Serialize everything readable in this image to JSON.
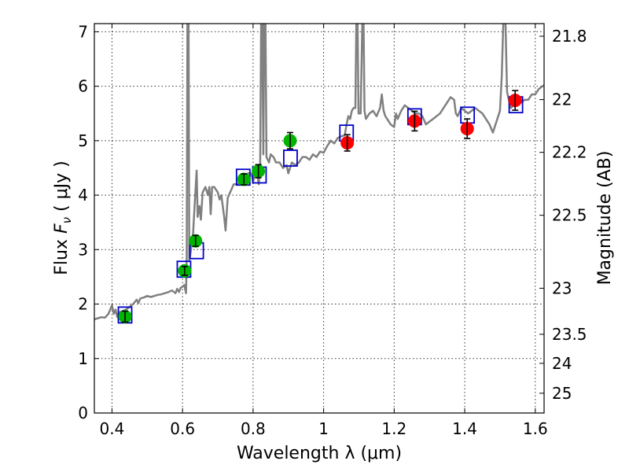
{
  "chart_data": {
    "type": "scatter",
    "xlabel": "Wavelength  λ (μm)",
    "ylabel_prefix": "Flux  ",
    "ylabel_symbol": "F",
    "ylabel_sub": "ν",
    "ylabel_unit": "  ( μJy )",
    "y2label": "Magnitude (AB)",
    "xlim": [
      0.35,
      1.625
    ],
    "ylim": [
      0,
      7.15
    ],
    "grid": true,
    "x_ticks": [
      {
        "value": 0.4,
        "label": "0.4"
      },
      {
        "value": 0.6,
        "label": "0.6"
      },
      {
        "value": 0.8,
        "label": "0.8"
      },
      {
        "value": 1.0,
        "label": "1"
      },
      {
        "value": 1.2,
        "label": "1.2"
      },
      {
        "value": 1.4,
        "label": "1.4"
      },
      {
        "value": 1.6,
        "label": "1.6"
      }
    ],
    "y_ticks": [
      {
        "value": 0,
        "label": "0"
      },
      {
        "value": 1,
        "label": "1"
      },
      {
        "value": 2,
        "label": "2"
      },
      {
        "value": 3,
        "label": "3"
      },
      {
        "value": 4,
        "label": "4"
      },
      {
        "value": 5,
        "label": "5"
      },
      {
        "value": 6,
        "label": "6"
      },
      {
        "value": 7,
        "label": "7"
      }
    ],
    "mag_ticks": [
      {
        "mag": 21.8,
        "label": "21.8"
      },
      {
        "mag": 22.0,
        "label": "22"
      },
      {
        "mag": 22.2,
        "label": "22.2"
      },
      {
        "mag": 22.5,
        "label": "22.5"
      },
      {
        "mag": 23.0,
        "label": "23"
      },
      {
        "mag": 23.5,
        "label": "23.5"
      },
      {
        "mag": 24.0,
        "label": "24"
      },
      {
        "mag": 25.0,
        "label": "25"
      }
    ],
    "colors": {
      "model": "#808080",
      "optical": "#00b400",
      "infrared": "#ff0000",
      "synthetic": "#0000cc",
      "errorbar": "#000000"
    },
    "model_spectrum": [
      [
        0.35,
        1.72
      ],
      [
        0.36,
        1.74
      ],
      [
        0.37,
        1.76
      ],
      [
        0.38,
        1.75
      ],
      [
        0.39,
        1.82
      ],
      [
        0.395,
        1.9
      ],
      [
        0.4,
        1.98
      ],
      [
        0.405,
        1.82
      ],
      [
        0.41,
        1.9
      ],
      [
        0.415,
        1.76
      ],
      [
        0.42,
        1.85
      ],
      [
        0.43,
        1.87
      ],
      [
        0.44,
        1.9
      ],
      [
        0.45,
        1.95
      ],
      [
        0.46,
        2.0
      ],
      [
        0.47,
        2.08
      ],
      [
        0.475,
        2.02
      ],
      [
        0.48,
        2.1
      ],
      [
        0.49,
        2.12
      ],
      [
        0.5,
        2.15
      ],
      [
        0.51,
        2.13
      ],
      [
        0.52,
        2.15
      ],
      [
        0.53,
        2.17
      ],
      [
        0.54,
        2.18
      ],
      [
        0.55,
        2.2
      ],
      [
        0.56,
        2.22
      ],
      [
        0.57,
        2.25
      ],
      [
        0.58,
        2.2
      ],
      [
        0.585,
        2.28
      ],
      [
        0.59,
        2.22
      ],
      [
        0.595,
        2.3
      ],
      [
        0.6,
        2.32
      ],
      [
        0.605,
        2.35
      ],
      [
        0.61,
        2.2
      ],
      [
        0.612,
        2.9
      ],
      [
        0.614,
        7.3
      ],
      [
        0.617,
        7.3
      ],
      [
        0.619,
        2.8
      ],
      [
        0.622,
        2.9
      ],
      [
        0.63,
        3.3
      ],
      [
        0.635,
        3.9
      ],
      [
        0.64,
        4.45
      ],
      [
        0.643,
        3.6
      ],
      [
        0.648,
        3.8
      ],
      [
        0.652,
        3.55
      ],
      [
        0.657,
        4.05
      ],
      [
        0.665,
        4.15
      ],
      [
        0.672,
        4.0
      ],
      [
        0.676,
        4.15
      ],
      [
        0.68,
        3.65
      ],
      [
        0.684,
        4.15
      ],
      [
        0.69,
        4.15
      ],
      [
        0.7,
        4.05
      ],
      [
        0.705,
        3.92
      ],
      [
        0.71,
        4.0
      ],
      [
        0.718,
        3.6
      ],
      [
        0.722,
        3.35
      ],
      [
        0.728,
        3.95
      ],
      [
        0.735,
        4.05
      ],
      [
        0.745,
        4.2
      ],
      [
        0.755,
        4.2
      ],
      [
        0.765,
        4.25
      ],
      [
        0.775,
        4.3
      ],
      [
        0.785,
        4.4
      ],
      [
        0.795,
        4.4
      ],
      [
        0.8,
        4.25
      ],
      [
        0.805,
        4.35
      ],
      [
        0.81,
        4.45
      ],
      [
        0.816,
        4.2
      ],
      [
        0.82,
        4.55
      ],
      [
        0.823,
        7.3
      ],
      [
        0.826,
        7.3
      ],
      [
        0.829,
        4.75
      ],
      [
        0.832,
        7.3
      ],
      [
        0.835,
        7.3
      ],
      [
        0.838,
        4.7
      ],
      [
        0.845,
        4.6
      ],
      [
        0.85,
        4.75
      ],
      [
        0.858,
        4.7
      ],
      [
        0.865,
        4.6
      ],
      [
        0.875,
        4.6
      ],
      [
        0.885,
        4.5
      ],
      [
        0.895,
        4.55
      ],
      [
        0.9,
        4.4
      ],
      [
        0.91,
        4.6
      ],
      [
        0.92,
        4.55
      ],
      [
        0.93,
        4.6
      ],
      [
        0.94,
        4.7
      ],
      [
        0.95,
        4.7
      ],
      [
        0.96,
        4.65
      ],
      [
        0.97,
        4.75
      ],
      [
        0.98,
        4.7
      ],
      [
        0.99,
        4.8
      ],
      [
        1.0,
        4.78
      ],
      [
        1.01,
        4.9
      ],
      [
        1.02,
        5.0
      ],
      [
        1.03,
        4.95
      ],
      [
        1.04,
        5.05
      ],
      [
        1.05,
        5.08
      ],
      [
        1.06,
        5.1
      ],
      [
        1.065,
        5.3
      ],
      [
        1.07,
        5.45
      ],
      [
        1.075,
        5.4
      ],
      [
        1.08,
        5.55
      ],
      [
        1.085,
        5.6
      ],
      [
        1.09,
        5.6
      ],
      [
        1.093,
        7.3
      ],
      [
        1.096,
        7.3
      ],
      [
        1.099,
        5.5
      ],
      [
        1.105,
        5.5
      ],
      [
        1.11,
        7.3
      ],
      [
        1.113,
        7.3
      ],
      [
        1.116,
        5.55
      ],
      [
        1.12,
        5.4
      ],
      [
        1.13,
        5.5
      ],
      [
        1.14,
        5.55
      ],
      [
        1.15,
        5.45
      ],
      [
        1.16,
        5.6
      ],
      [
        1.165,
        5.85
      ],
      [
        1.17,
        5.55
      ],
      [
        1.175,
        5.45
      ],
      [
        1.18,
        5.4
      ],
      [
        1.19,
        5.3
      ],
      [
        1.2,
        5.25
      ],
      [
        1.205,
        5.5
      ],
      [
        1.21,
        5.4
      ],
      [
        1.22,
        5.55
      ],
      [
        1.23,
        5.65
      ],
      [
        1.24,
        5.6
      ],
      [
        1.25,
        5.55
      ],
      [
        1.26,
        5.5
      ],
      [
        1.27,
        5.5
      ],
      [
        1.28,
        5.45
      ],
      [
        1.29,
        5.3
      ],
      [
        1.3,
        5.35
      ],
      [
        1.31,
        5.4
      ],
      [
        1.32,
        5.45
      ],
      [
        1.33,
        5.5
      ],
      [
        1.34,
        5.6
      ],
      [
        1.35,
        5.7
      ],
      [
        1.36,
        5.8
      ],
      [
        1.37,
        5.75
      ],
      [
        1.375,
        5.5
      ],
      [
        1.38,
        5.45
      ],
      [
        1.39,
        5.6
      ],
      [
        1.4,
        5.55
      ],
      [
        1.41,
        5.5
      ],
      [
        1.42,
        5.55
      ],
      [
        1.43,
        5.6
      ],
      [
        1.44,
        5.55
      ],
      [
        1.45,
        5.5
      ],
      [
        1.46,
        5.4
      ],
      [
        1.47,
        5.3
      ],
      [
        1.48,
        5.15
      ],
      [
        1.49,
        5.35
      ],
      [
        1.5,
        5.55
      ],
      [
        1.505,
        6.2
      ],
      [
        1.51,
        7.3
      ],
      [
        1.515,
        7.3
      ],
      [
        1.52,
        5.9
      ],
      [
        1.53,
        5.6
      ],
      [
        1.54,
        5.65
      ],
      [
        1.55,
        5.7
      ],
      [
        1.56,
        5.7
      ],
      [
        1.57,
        5.75
      ],
      [
        1.58,
        5.75
      ],
      [
        1.59,
        5.85
      ],
      [
        1.6,
        5.85
      ],
      [
        1.61,
        5.95
      ],
      [
        1.625,
        6.02
      ]
    ],
    "synthetic_photometry": [
      {
        "x": 0.437,
        "y": 1.8
      },
      {
        "x": 0.604,
        "y": 2.64
      },
      {
        "x": 0.64,
        "y": 2.98
      },
      {
        "x": 0.772,
        "y": 4.33
      },
      {
        "x": 0.818,
        "y": 4.37
      },
      {
        "x": 0.906,
        "y": 4.68
      },
      {
        "x": 1.065,
        "y": 5.14
      },
      {
        "x": 1.258,
        "y": 5.44
      },
      {
        "x": 1.408,
        "y": 5.47
      },
      {
        "x": 1.545,
        "y": 5.66
      }
    ],
    "series": [
      {
        "marker_color": "optical",
        "points": [
          {
            "x": 0.437,
            "y": 1.77,
            "err": 0.1
          },
          {
            "x": 0.606,
            "y": 2.61,
            "err": 0.08
          },
          {
            "x": 0.637,
            "y": 3.16,
            "err": 0.1
          },
          {
            "x": 0.774,
            "y": 4.29,
            "err": 0.1
          },
          {
            "x": 0.815,
            "y": 4.44,
            "err": 0.12
          },
          {
            "x": 0.905,
            "y": 5.0,
            "err": 0.15
          }
        ]
      },
      {
        "marker_color": "infrared",
        "points": [
          {
            "x": 1.067,
            "y": 4.96,
            "err": 0.15
          },
          {
            "x": 1.258,
            "y": 5.36,
            "err": 0.18
          },
          {
            "x": 1.407,
            "y": 5.22,
            "err": 0.18
          },
          {
            "x": 1.543,
            "y": 5.74,
            "err": 0.18
          }
        ]
      }
    ]
  }
}
